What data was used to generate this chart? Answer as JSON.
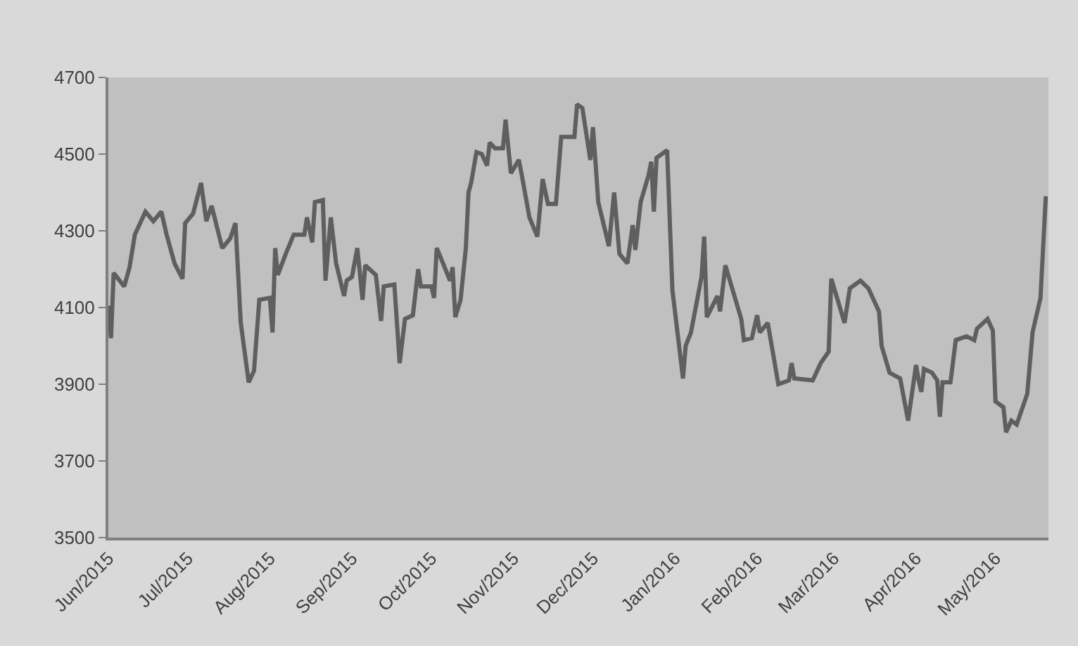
{
  "chart_data": {
    "type": "line",
    "grid": false,
    "marker": "none",
    "line_style": "solid",
    "x": [
      "2015-06-01",
      "2015-06-02",
      "2015-06-03",
      "2015-06-07",
      "2015-06-09",
      "2015-06-11",
      "2015-06-15",
      "2015-06-18",
      "2015-06-21",
      "2015-06-23",
      "2015-06-26",
      "2015-06-29",
      "2015-06-30",
      "2015-07-03",
      "2015-07-06",
      "2015-07-08",
      "2015-07-10",
      "2015-07-14",
      "2015-07-17",
      "2015-07-19",
      "2015-07-21",
      "2015-07-24",
      "2015-07-26",
      "2015-07-28",
      "2015-08-01",
      "2015-08-02",
      "2015-08-03",
      "2015-08-04",
      "2015-08-07",
      "2015-08-10",
      "2015-08-14",
      "2015-08-15",
      "2015-08-17",
      "2015-08-18",
      "2015-08-21",
      "2015-08-22",
      "2015-08-24",
      "2015-08-26",
      "2015-08-29",
      "2015-08-30",
      "2015-09-01",
      "2015-09-03",
      "2015-09-05",
      "2015-09-06",
      "2015-09-10",
      "2015-09-12",
      "2015-09-13",
      "2015-09-17",
      "2015-09-19",
      "2015-09-21",
      "2015-09-24",
      "2015-09-26",
      "2015-09-27",
      "2015-10-01",
      "2015-10-02",
      "2015-10-03",
      "2015-10-06",
      "2015-10-08",
      "2015-10-09",
      "2015-10-10",
      "2015-10-12",
      "2015-10-14",
      "2015-10-15",
      "2015-10-16",
      "2015-10-18",
      "2015-10-20",
      "2015-10-22",
      "2015-10-23",
      "2015-10-25",
      "2015-10-28",
      "2015-10-29",
      "2015-10-31",
      "2015-11-03",
      "2015-11-04",
      "2015-11-07",
      "2015-11-10",
      "2015-11-12",
      "2015-11-14",
      "2015-11-17",
      "2015-11-19",
      "2015-11-24",
      "2015-11-25",
      "2015-11-27",
      "2015-11-30",
      "2015-12-01",
      "2015-12-02",
      "2015-12-03",
      "2015-12-07",
      "2015-12-09",
      "2015-12-11",
      "2015-12-14",
      "2015-12-16",
      "2015-12-17",
      "2015-12-19",
      "2015-12-22",
      "2015-12-23",
      "2015-12-24",
      "2015-12-25",
      "2015-12-29",
      "2015-12-31",
      "2016-01-04",
      "2016-01-05",
      "2016-01-07",
      "2016-01-11",
      "2016-01-12",
      "2016-01-13",
      "2016-01-17",
      "2016-01-18",
      "2016-01-20",
      "2016-01-26",
      "2016-01-27",
      "2016-01-30",
      "2016-02-01",
      "2016-02-02",
      "2016-02-05",
      "2016-02-09",
      "2016-02-13",
      "2016-02-14",
      "2016-02-15",
      "2016-02-22",
      "2016-02-25",
      "2016-02-28",
      "2016-02-29",
      "2016-03-05",
      "2016-03-07",
      "2016-03-11",
      "2016-03-14",
      "2016-03-18",
      "2016-03-19",
      "2016-03-22",
      "2016-03-26",
      "2016-03-29",
      "2016-04-01",
      "2016-04-02",
      "2016-04-03",
      "2016-04-04",
      "2016-04-07",
      "2016-04-09",
      "2016-04-10",
      "2016-04-11",
      "2016-04-14",
      "2016-04-16",
      "2016-04-20",
      "2016-04-23",
      "2016-04-24",
      "2016-04-28",
      "2016-04-30",
      "2016-05-01",
      "2016-05-04",
      "2016-05-05",
      "2016-05-07",
      "2016-05-09",
      "2016-05-13",
      "2016-05-15",
      "2016-05-18",
      "2016-05-20"
    ],
    "series": [
      {
        "color": "#5f5f5f",
        "values": [
          4105,
          4020,
          4190,
          4155,
          4205,
          4290,
          4350,
          4325,
          4350,
          4290,
          4215,
          4175,
          4320,
          4345,
          4425,
          4325,
          4365,
          4255,
          4280,
          4320,
          4060,
          3905,
          3935,
          4120,
          4125,
          4035,
          4255,
          4185,
          4240,
          4290,
          4290,
          4335,
          4270,
          4375,
          4380,
          4170,
          4335,
          4215,
          4130,
          4170,
          4180,
          4255,
          4120,
          4210,
          4185,
          4065,
          4155,
          4160,
          3955,
          4070,
          4080,
          4200,
          4155,
          4155,
          4125,
          4255,
          4205,
          4170,
          4205,
          4075,
          4120,
          4255,
          4400,
          4425,
          4505,
          4500,
          4470,
          4530,
          4515,
          4515,
          4590,
          4450,
          4485,
          4450,
          4335,
          4285,
          4435,
          4370,
          4370,
          4545,
          4545,
          4630,
          4620,
          4485,
          4570,
          4475,
          4375,
          4260,
          4400,
          4240,
          4215,
          4315,
          4250,
          4375,
          4445,
          4480,
          4350,
          4490,
          4510,
          4145,
          3915,
          4000,
          4035,
          4180,
          4285,
          4075,
          4130,
          4090,
          4210,
          4070,
          4015,
          4020,
          4080,
          4035,
          4060,
          3900,
          3910,
          3955,
          3915,
          3910,
          3955,
          3985,
          4175,
          4060,
          4150,
          4170,
          4150,
          4090,
          4000,
          3930,
          3915,
          3805,
          3950,
          3910,
          3880,
          3940,
          3930,
          3910,
          3815,
          3905,
          3905,
          4015,
          4025,
          4015,
          4045,
          4070,
          4040,
          3855,
          3840,
          3775,
          3805,
          3795,
          3875,
          4035,
          4125,
          4390
        ]
      }
    ],
    "xlim": [
      "2015-06-01",
      "2016-05-21"
    ],
    "xticks": [
      {
        "value": "2015-06-01",
        "label": "Jun/2015"
      },
      {
        "value": "2015-07-01",
        "label": "Jul/2015"
      },
      {
        "value": "2015-08-01",
        "label": "Aug/2015"
      },
      {
        "value": "2015-09-01",
        "label": "Sep/2015"
      },
      {
        "value": "2015-10-01",
        "label": "Oct/2015"
      },
      {
        "value": "2015-11-01",
        "label": "Nov/2015"
      },
      {
        "value": "2015-12-01",
        "label": "Dec/2015"
      },
      {
        "value": "2016-01-01",
        "label": "Jan/2016"
      },
      {
        "value": "2016-02-01",
        "label": "Feb/2016"
      },
      {
        "value": "2016-03-01",
        "label": "Mar/2016"
      },
      {
        "value": "2016-04-01",
        "label": "Apr/2016"
      },
      {
        "value": "2016-05-01",
        "label": "May/2016"
      }
    ],
    "ylim": [
      3500,
      4700
    ],
    "yticks": [
      3500,
      3700,
      3900,
      4100,
      4300,
      4500,
      4700
    ]
  }
}
